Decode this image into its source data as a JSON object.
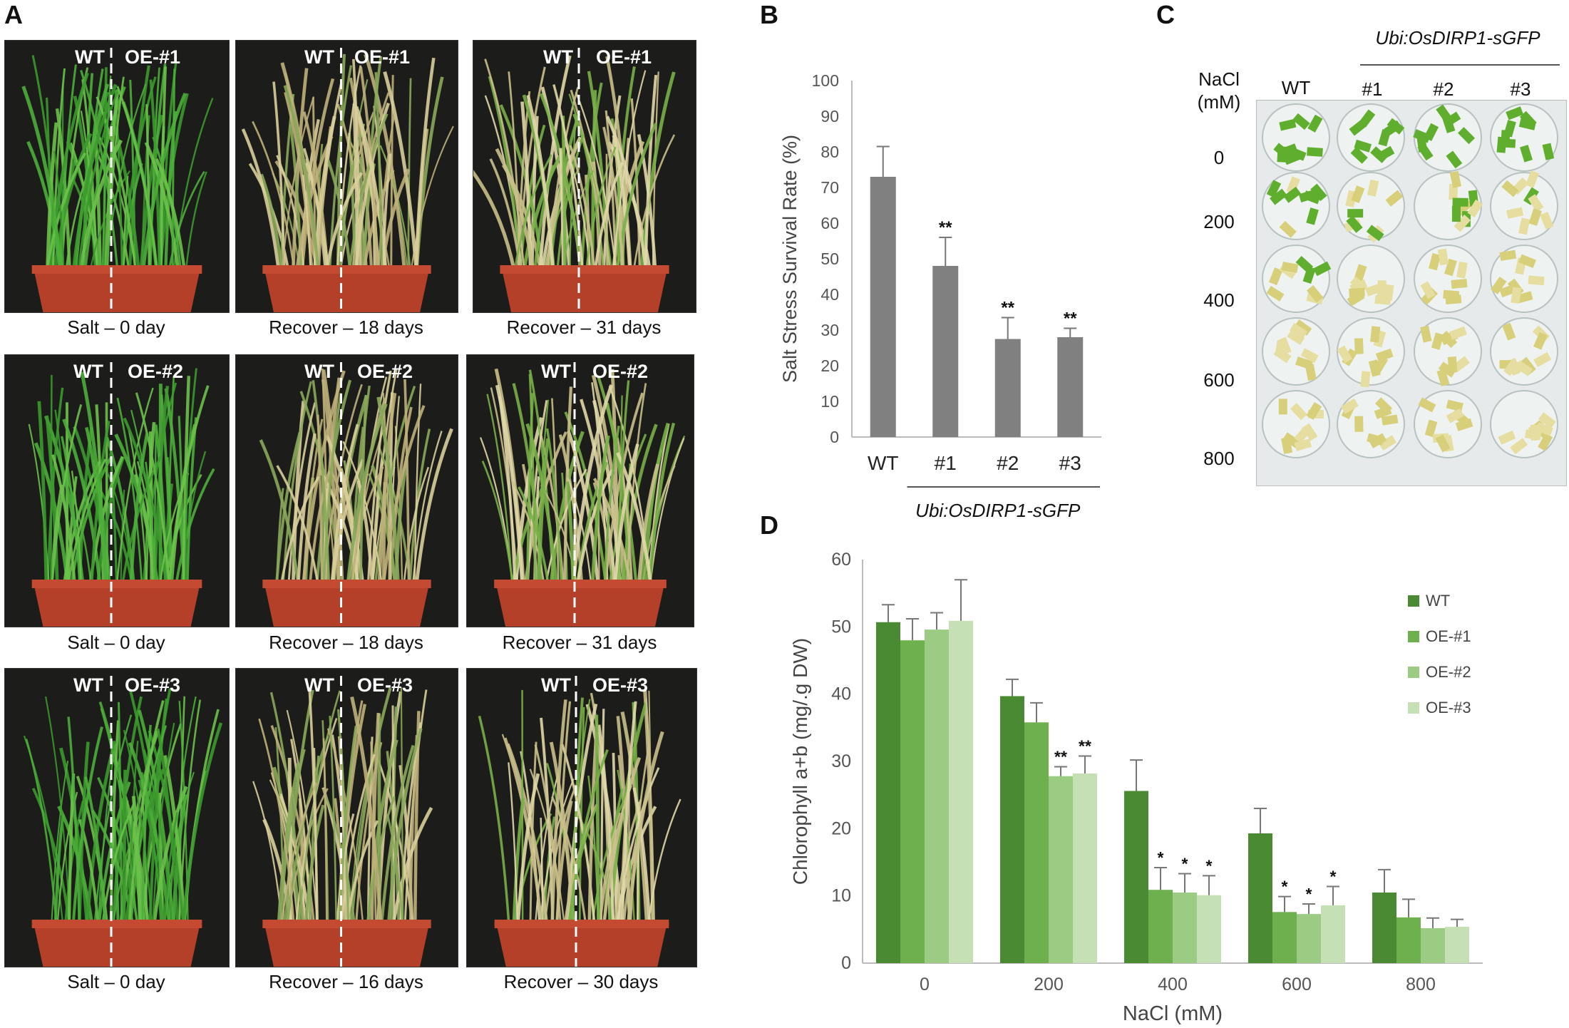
{
  "panels": {
    "a": "A",
    "b": "B",
    "c": "C",
    "d": "D"
  },
  "panel_a": {
    "photos": [
      {
        "wt": "WT",
        "oe": "OE-#1",
        "caption": "Salt – 0 day"
      },
      {
        "wt": "WT",
        "oe": "OE-#1",
        "caption": "Recover – 18 days"
      },
      {
        "wt": "WT",
        "oe": "OE-#1",
        "caption": "Recover   – 31 days"
      },
      {
        "wt": "WT",
        "oe": "OE-#2",
        "caption": "Salt – 0 day"
      },
      {
        "wt": "WT",
        "oe": "OE-#2",
        "caption": "Recover – 18 days"
      },
      {
        "wt": "WT",
        "oe": "OE-#2",
        "caption": "Recover – 31 days"
      },
      {
        "wt": "WT",
        "oe": "OE-#3",
        "caption": "Salt – 0 day"
      },
      {
        "wt": "WT",
        "oe": "OE-#3",
        "caption": "Recover – 16 days"
      },
      {
        "wt": "WT",
        "oe": "OE-#3",
        "caption": "Recover – 30 days"
      }
    ]
  },
  "panel_c": {
    "group_label": "Ubi:OsDIRP1-sGFP",
    "row_header": "NaCl",
    "row_header_unit": "(mM)",
    "columns": [
      "WT",
      "#1",
      "#2",
      "#3"
    ],
    "rows": [
      "0",
      "200",
      "400",
      "600",
      "800"
    ]
  },
  "chart_data": [
    {
      "id": "B",
      "type": "bar",
      "title": "",
      "ylabel": "Salt Stress Survival Rate (%)",
      "xlabel": "",
      "categories": [
        "WT",
        "#1",
        "#2",
        "#3"
      ],
      "values": [
        73,
        48,
        27.5,
        28
      ],
      "errors": [
        8.5,
        8,
        6,
        2.5
      ],
      "significance": [
        "",
        "**",
        "**",
        "**"
      ],
      "group_label": "Ubi:OsDIRP1-sGFP",
      "ylim": [
        0,
        100
      ],
      "yticks": [
        "0",
        "10",
        "20",
        "30",
        "40",
        "50",
        "60",
        "70",
        "80",
        "90",
        "100"
      ],
      "bar_color": "#808080"
    },
    {
      "id": "D",
      "type": "bar",
      "title": "",
      "ylabel": "Chlorophyll a+b (mg/.g DW)",
      "xlabel": "NaCl (mM)",
      "categories": [
        "0",
        "200",
        "400",
        "600",
        "800"
      ],
      "series": [
        {
          "name": "WT",
          "color": "#4a8a32",
          "values": [
            50.7,
            39.7,
            25.6,
            19.3,
            10.5
          ],
          "errors": [
            2.6,
            2.5,
            4.6,
            3.7,
            3.4
          ],
          "sig": [
            "",
            "",
            "",
            "",
            ""
          ]
        },
        {
          "name": "OE-#1",
          "color": "#6fb04e",
          "values": [
            48,
            35.8,
            10.9,
            7.6,
            6.8
          ],
          "errors": [
            3.2,
            2.9,
            3.3,
            2.3,
            2.7
          ],
          "sig": [
            "",
            "",
            "*",
            "*",
            ""
          ]
        },
        {
          "name": "OE-#2",
          "color": "#9ccc84",
          "values": [
            49.6,
            27.8,
            10.5,
            7.3,
            5.2
          ],
          "errors": [
            2.5,
            1.4,
            2.8,
            1.5,
            1.5
          ],
          "sig": [
            "",
            "**",
            "*",
            "*",
            ""
          ]
        },
        {
          "name": "OE-#3",
          "color": "#c5e0b5",
          "values": [
            50.9,
            28.2,
            10.1,
            8.6,
            5.4
          ],
          "errors": [
            6.1,
            2.6,
            2.9,
            2.8,
            1.1
          ],
          "sig": [
            "",
            "**",
            "*",
            "*",
            ""
          ]
        }
      ],
      "ylim": [
        0,
        60
      ],
      "yticks": [
        "0",
        "10",
        "20",
        "30",
        "40",
        "50",
        "60"
      ],
      "legend": "right"
    }
  ]
}
